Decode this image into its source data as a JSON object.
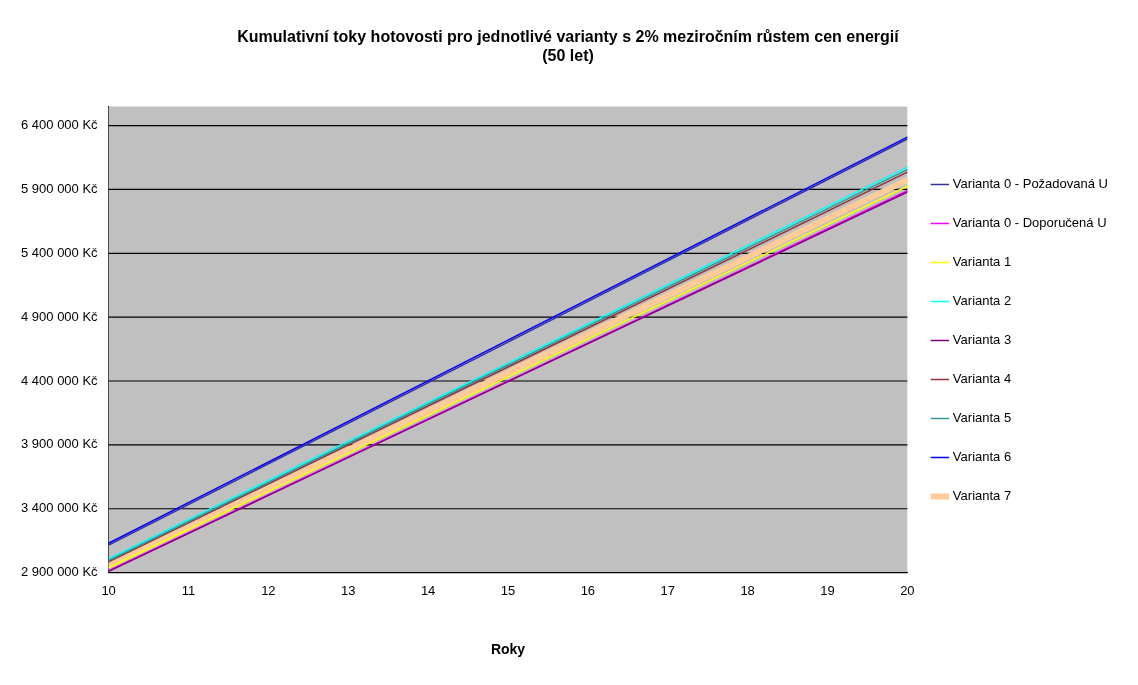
{
  "chart_data": {
    "type": "line",
    "title": "Kumulativní toky hotovosti pro jednotlivé varianty s 2% meziročním růstem cen energií\n(50 let)",
    "xlabel": "Roky",
    "x": [
      10,
      15,
      20
    ],
    "series": [
      {
        "name": "Varianta 0 - Požadovaná U",
        "color": "#333399",
        "values": [
          3115000,
          4705000,
          6295000
        ]
      },
      {
        "name": "Varianta 0 - Doporučená U",
        "color": "#ff00ff",
        "values": [
          2915000,
          4400000,
          5890000
        ]
      },
      {
        "name": "Varianta 1",
        "color": "#ffff00",
        "values": [
          2940000,
          4430000,
          5925000
        ]
      },
      {
        "name": "Varianta 2",
        "color": "#00ffff",
        "values": [
          3010000,
          4540000,
          6075000
        ]
      },
      {
        "name": "Varianta 3",
        "color": "#800080",
        "values": [
          2910000,
          4395000,
          5880000
        ]
      },
      {
        "name": "Varianta 4",
        "color": "#993333",
        "values": [
          2985000,
          4510000,
          6035000
        ]
      },
      {
        "name": "Varianta 5",
        "color": "#339999",
        "values": [
          2995000,
          4525000,
          6055000
        ]
      },
      {
        "name": "Varianta 6",
        "color": "#0000ff",
        "values": [
          3130000,
          4720000,
          6310000
        ]
      },
      {
        "name": "Varianta 7",
        "color": "#ffcc99",
        "values": [
          2955000,
          4465000,
          5975000
        ]
      }
    ],
    "xlim": [
      10,
      20
    ],
    "xticks": [
      10,
      11,
      12,
      13,
      14,
      15,
      16,
      17,
      18,
      19,
      20
    ],
    "ylim": [
      2900000,
      6550000
    ],
    "yticks": [
      {
        "value": 2900000,
        "label": "2 900 000 Kč"
      },
      {
        "value": 3400000,
        "label": "3 400 000 Kč"
      },
      {
        "value": 3900000,
        "label": "3 900 000 Kč"
      },
      {
        "value": 4400000,
        "label": "4 400 000 Kč"
      },
      {
        "value": 4900000,
        "label": "4 900 000 Kč"
      },
      {
        "value": 5400000,
        "label": "5 400 000 Kč"
      },
      {
        "value": 5900000,
        "label": "5 900 000 Kč"
      },
      {
        "value": 6400000,
        "label": "6 400 000 Kč"
      }
    ],
    "grid": "y",
    "legend": "right",
    "marker": "none",
    "line_style": "solid"
  }
}
